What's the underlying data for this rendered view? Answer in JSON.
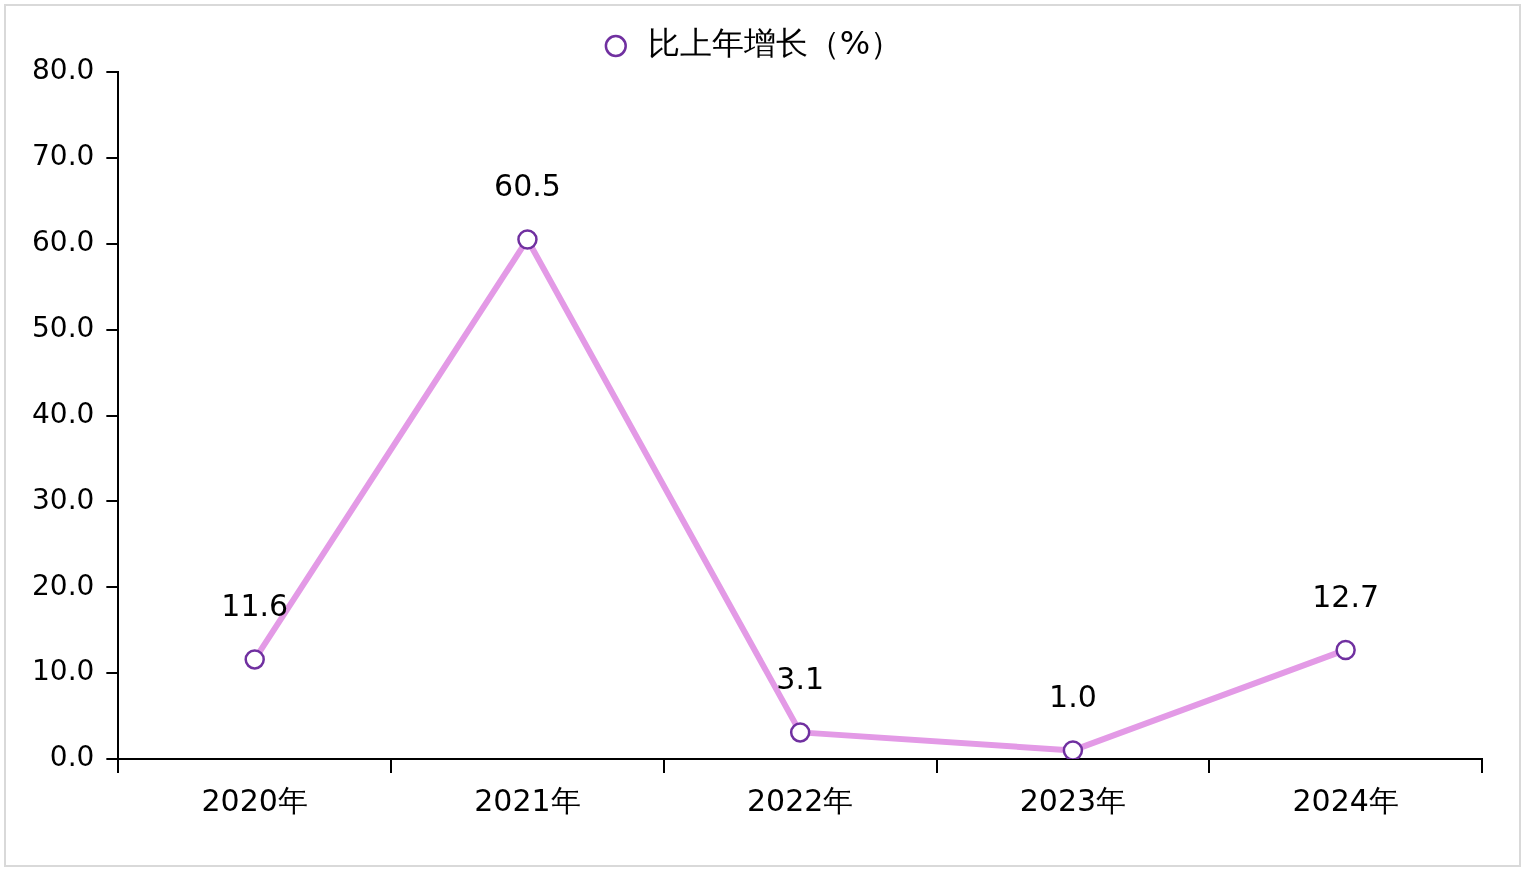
{
  "chart_data": {
    "type": "line",
    "categories": [
      "2020年",
      "2021年",
      "2022年",
      "2023年",
      "2024年"
    ],
    "series": [
      {
        "name": "比上年增长（%）",
        "color": "#e39ae6",
        "values": [
          11.6,
          60.5,
          3.1,
          1.0,
          12.7
        ],
        "value_labels": [
          "11.6",
          "60.5",
          "3.1",
          "1.0",
          "12.7"
        ]
      }
    ],
    "ylim": [
      0,
      80
    ],
    "yticks": [
      {
        "value": 0,
        "label": "0.0"
      },
      {
        "value": 10,
        "label": "10.0"
      },
      {
        "value": 20,
        "label": "20.0"
      },
      {
        "value": 30,
        "label": "30.0"
      },
      {
        "value": 40,
        "label": "40.0"
      },
      {
        "value": 50,
        "label": "50.0"
      },
      {
        "value": 60,
        "label": "60.0"
      },
      {
        "value": 70,
        "label": "70.0"
      },
      {
        "value": 80,
        "label": "80.0"
      }
    ],
    "marker": "circle",
    "line_style": "solid",
    "legend": "top",
    "grid": false
  }
}
